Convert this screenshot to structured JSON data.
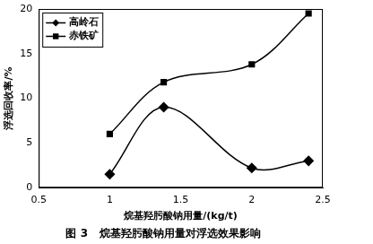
{
  "chart_data": {
    "type": "line",
    "title": "图 3   烷基羟肟酸钠用量对浮选效果影响",
    "x_label": "烷基羟肟酸钠用量/(kg/t)",
    "y_label": "浮选回收率/%",
    "x": [
      1,
      1.38,
      2,
      2.4
    ],
    "series": [
      {
        "name": "高岭石",
        "color": "#000000",
        "marker": "diamond",
        "line_style": "solid",
        "values": [
          1.5,
          9,
          2.2,
          3
        ]
      },
      {
        "name": "赤铁矿",
        "color": "#000000",
        "marker": "square",
        "line_style": "solid",
        "values": [
          6,
          11.8,
          13.8,
          19.5
        ]
      }
    ],
    "xlim": [
      0.5,
      2.5
    ],
    "xticks": [
      0.5,
      1,
      1.5,
      2,
      2.5
    ],
    "ylim": [
      0,
      20
    ],
    "yticks": [
      0,
      5,
      10,
      15,
      20
    ],
    "grid": false,
    "legend": "upper left"
  }
}
